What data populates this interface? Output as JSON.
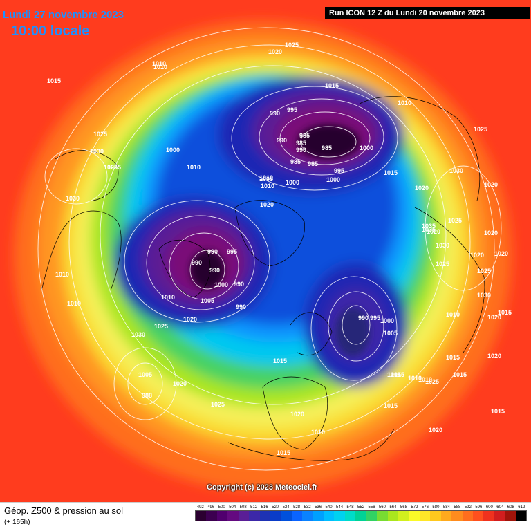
{
  "header": {
    "date": "Lundi 27 novembre 2023",
    "local_time": "10:00 locale",
    "run_info": "Run ICON 12 Z du Lundi 20 novembre 2023"
  },
  "copyright": "Copyright (c) 2023 Meteociel.fr",
  "legend": {
    "title": "Géop. Z500 & pression au sol",
    "lead_time": "(+ 165h)",
    "scale": [
      "492",
      "496",
      "500",
      "504",
      "508",
      "512",
      "516",
      "520",
      "524",
      "528",
      "532",
      "536",
      "540",
      "544",
      "548",
      "552",
      "556",
      "560",
      "564",
      "568",
      "572",
      "576",
      "580",
      "584",
      "588",
      "592",
      "596",
      "600",
      "604",
      "608",
      "612"
    ],
    "colors": [
      "#2b0030",
      "#3c0050",
      "#50006e",
      "#640a80",
      "#5a1e96",
      "#3c28a8",
      "#1e32b4",
      "#0a3cc8",
      "#0050dc",
      "#0a64ff",
      "#0a82ff",
      "#00a0ff",
      "#00beff",
      "#00d2f0",
      "#00dcc8",
      "#00d296",
      "#32d264",
      "#78dc32",
      "#aae61e",
      "#d2f01e",
      "#fafa28",
      "#ffe628",
      "#ffc81e",
      "#ffaa1e",
      "#ff8c1e",
      "#ff6e1e",
      "#ff501e",
      "#f0321e",
      "#d21e1e",
      "#a0140a",
      "#000000"
    ]
  },
  "map": {
    "palette": {
      "ocean_bg": "#ff3c1e",
      "warm_2": "#ff6e1e",
      "warm_3": "#ff9620",
      "yellow": "#fadc32",
      "pale": "#f5f05a",
      "lime": "#aae61e",
      "green": "#46d264",
      "cyan": "#00c8f0",
      "sky": "#0a96ff",
      "blue": "#0a50dc",
      "deep_blue": "#1e28b4",
      "violet": "#5a1e96",
      "purple": "#7a0a78",
      "dark": "#28002e",
      "isobar": "#ffffff",
      "coast": "#000000"
    },
    "pressure_labels": [
      "1015",
      "1010",
      "1025",
      "1020",
      "1010",
      "1015",
      "990",
      "995",
      "985",
      "990",
      "985",
      "990",
      "985",
      "1000",
      "985",
      "985",
      "995",
      "1000",
      "1010",
      "1015",
      "1010",
      "1025",
      "1030",
      "1025",
      "1000",
      "1010",
      "1005",
      "1010",
      "1000",
      "1020",
      "1025",
      "1030",
      "1020",
      "1025",
      "1030",
      "1035",
      "1020",
      "1025",
      "1020",
      "1025",
      "995",
      "990",
      "990",
      "990",
      "990",
      "1000",
      "1005",
      "990",
      "1010",
      "1010",
      "1020",
      "1030",
      "1025",
      "1010",
      "1015",
      "1005",
      "988",
      "1020",
      "1025",
      "1015",
      "1010",
      "990",
      "995",
      "1000",
      "1005",
      "1015",
      "1015",
      "1010",
      "1015",
      "1020",
      "1010",
      "1015",
      "1010",
      "1020",
      "1025",
      "1030",
      "1020",
      "1035",
      "1025",
      "1015",
      "1020",
      "1020",
      "1030",
      "1020",
      "1015",
      "1015",
      "1020"
    ]
  }
}
